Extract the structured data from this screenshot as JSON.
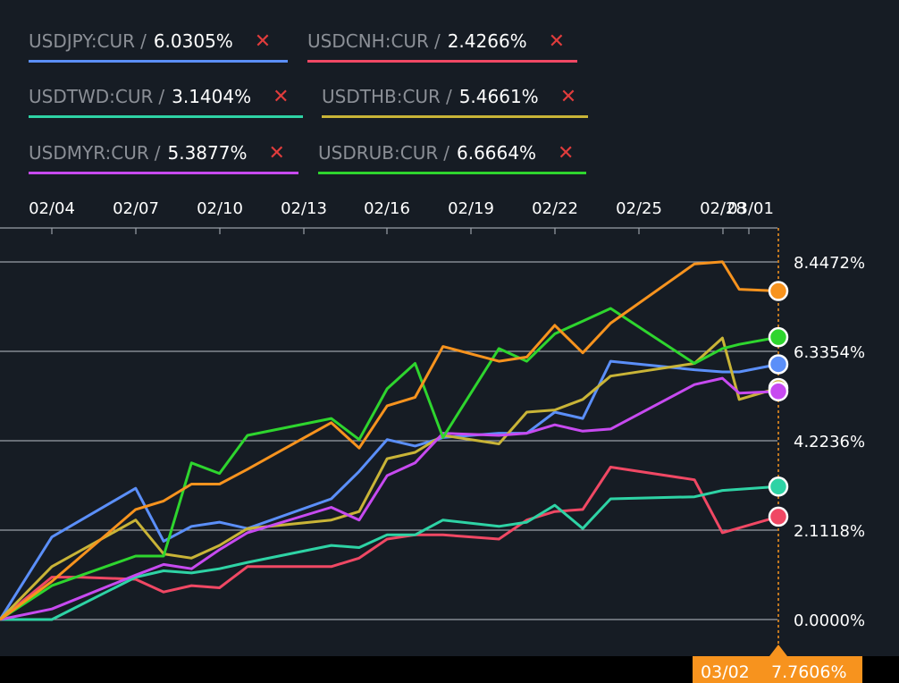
{
  "legend": [
    {
      "symbol": "USDJPY:CUR",
      "value": "6.0305%",
      "color": "#5b8ff9"
    },
    {
      "symbol": "USDCNH:CUR",
      "value": "2.4266%",
      "color": "#f04864"
    },
    {
      "symbol": "USDTWD:CUR",
      "value": "3.1404%",
      "color": "#2ed3a5"
    },
    {
      "symbol": "USDTHB:CUR",
      "value": "5.4661%",
      "color": "#c9b437"
    },
    {
      "symbol": "USDMYR:CUR",
      "value": "5.3877%",
      "color": "#c74af0"
    },
    {
      "symbol": "USDRUB:CUR",
      "value": "6.6664%",
      "color": "#2ed52e"
    }
  ],
  "remove_glyph": "✕",
  "slash": "/",
  "crosshair": {
    "date": "03/02",
    "value": "7.7606%",
    "color": "#f7931e"
  },
  "chart_data": {
    "type": "line",
    "xticks": [
      "02/04",
      "02/07",
      "02/10",
      "02/13",
      "02/16",
      "02/19",
      "02/22",
      "02/25",
      "02/28",
      "03/01"
    ],
    "yticks": [
      "0.0000%",
      "2.1118%",
      "4.2236%",
      "6.3354%",
      "8.4472%"
    ],
    "ylim": [
      -0.5,
      8.9
    ],
    "grid": true,
    "series": [
      {
        "name": "USDJPY:CUR",
        "color": "#5b8ff9",
        "points": [
          [
            0,
            0
          ],
          [
            1,
            1.95
          ],
          [
            4,
            3.1
          ],
          [
            5,
            1.85
          ],
          [
            6,
            2.2
          ],
          [
            7,
            2.3
          ],
          [
            8,
            2.15
          ],
          [
            11,
            2.85
          ],
          [
            12,
            3.5
          ],
          [
            13,
            4.25
          ],
          [
            14,
            4.1
          ],
          [
            15,
            4.3
          ],
          [
            17,
            4.4
          ],
          [
            18,
            4.4
          ],
          [
            19,
            4.9
          ],
          [
            20,
            4.75
          ],
          [
            21,
            6.1
          ],
          [
            24,
            5.9
          ],
          [
            25,
            5.85
          ],
          [
            25.6,
            5.85
          ],
          [
            26.5,
            6.03
          ]
        ]
      },
      {
        "name": "USDCNH:CUR",
        "color": "#f04864",
        "points": [
          [
            0,
            0
          ],
          [
            1,
            1.0
          ],
          [
            2,
            1.0
          ],
          [
            4,
            0.95
          ],
          [
            5,
            0.65
          ],
          [
            6,
            0.8
          ],
          [
            7,
            0.75
          ],
          [
            8,
            1.25
          ],
          [
            11,
            1.25
          ],
          [
            12,
            1.45
          ],
          [
            13,
            1.9
          ],
          [
            14,
            2.0
          ],
          [
            15,
            2.0
          ],
          [
            17,
            1.9
          ],
          [
            18,
            2.35
          ],
          [
            19,
            2.55
          ],
          [
            20,
            2.6
          ],
          [
            21,
            3.6
          ],
          [
            24,
            3.3
          ],
          [
            25,
            2.05
          ],
          [
            26.5,
            2.43
          ]
        ]
      },
      {
        "name": "USDTWD:CUR",
        "color": "#2ed3a5",
        "points": [
          [
            0,
            0
          ],
          [
            1,
            0
          ],
          [
            4,
            1.0
          ],
          [
            5,
            1.15
          ],
          [
            6,
            1.1
          ],
          [
            7,
            1.2
          ],
          [
            8,
            1.35
          ],
          [
            11,
            1.75
          ],
          [
            12,
            1.7
          ],
          [
            13,
            2.0
          ],
          [
            14,
            2.0
          ],
          [
            15,
            2.35
          ],
          [
            17,
            2.2
          ],
          [
            18,
            2.3
          ],
          [
            19,
            2.7
          ],
          [
            20,
            2.15
          ],
          [
            21,
            2.85
          ],
          [
            24,
            2.9
          ],
          [
            25,
            3.05
          ],
          [
            26.5,
            3.14
          ]
        ]
      },
      {
        "name": "USDTHB:CUR",
        "color": "#c9b437",
        "points": [
          [
            0,
            0
          ],
          [
            1,
            1.25
          ],
          [
            4,
            2.35
          ],
          [
            5,
            1.55
          ],
          [
            6,
            1.45
          ],
          [
            7,
            1.75
          ],
          [
            8,
            2.15
          ],
          [
            11,
            2.35
          ],
          [
            12,
            2.55
          ],
          [
            13,
            3.8
          ],
          [
            14,
            3.95
          ],
          [
            15,
            4.35
          ],
          [
            17,
            4.15
          ],
          [
            18,
            4.9
          ],
          [
            19,
            4.95
          ],
          [
            20,
            5.2
          ],
          [
            21,
            5.75
          ],
          [
            24,
            6.05
          ],
          [
            25,
            6.65
          ],
          [
            25.6,
            5.2
          ],
          [
            26.5,
            5.47
          ]
        ]
      },
      {
        "name": "USDMYR:CUR",
        "color": "#c74af0",
        "points": [
          [
            0,
            0
          ],
          [
            1,
            0.25
          ],
          [
            4,
            1.05
          ],
          [
            5,
            1.3
          ],
          [
            6,
            1.2
          ],
          [
            7,
            1.65
          ],
          [
            8,
            2.05
          ],
          [
            11,
            2.65
          ],
          [
            12,
            2.35
          ],
          [
            13,
            3.4
          ],
          [
            14,
            3.7
          ],
          [
            15,
            4.4
          ],
          [
            17,
            4.35
          ],
          [
            18,
            4.4
          ],
          [
            19,
            4.6
          ],
          [
            20,
            4.45
          ],
          [
            21,
            4.5
          ],
          [
            24,
            5.55
          ],
          [
            25,
            5.7
          ],
          [
            25.6,
            5.35
          ],
          [
            26.5,
            5.39
          ]
        ]
      },
      {
        "name": "USDRUB:CUR",
        "color": "#2ed52e",
        "points": [
          [
            0,
            0
          ],
          [
            1,
            0.8
          ],
          [
            4,
            1.5
          ],
          [
            5,
            1.5
          ],
          [
            6,
            3.7
          ],
          [
            7,
            3.45
          ],
          [
            8,
            4.35
          ],
          [
            11,
            4.75
          ],
          [
            12,
            4.25
          ],
          [
            13,
            5.45
          ],
          [
            14,
            6.05
          ],
          [
            15,
            4.3
          ],
          [
            17,
            6.4
          ],
          [
            18,
            6.1
          ],
          [
            19,
            6.75
          ],
          [
            20,
            7.05
          ],
          [
            21,
            7.35
          ],
          [
            24,
            6.05
          ],
          [
            25,
            6.4
          ],
          [
            25.6,
            6.5
          ],
          [
            26.5,
            6.67
          ]
        ]
      },
      {
        "name": "",
        "color": "#f7931e",
        "points": [
          [
            0,
            0
          ],
          [
            1,
            0.9
          ],
          [
            4,
            2.6
          ],
          [
            5,
            2.8
          ],
          [
            6,
            3.2
          ],
          [
            7,
            3.2
          ],
          [
            8,
            3.55
          ],
          [
            11,
            4.65
          ],
          [
            12,
            4.05
          ],
          [
            13,
            5.05
          ],
          [
            14,
            5.25
          ],
          [
            15,
            6.45
          ],
          [
            17,
            6.1
          ],
          [
            18,
            6.2
          ],
          [
            19,
            6.95
          ],
          [
            20,
            6.3
          ],
          [
            21,
            7.0
          ],
          [
            24,
            8.4
          ],
          [
            25,
            8.45
          ],
          [
            25.6,
            7.8
          ],
          [
            26.5,
            7.76
          ]
        ]
      }
    ]
  }
}
